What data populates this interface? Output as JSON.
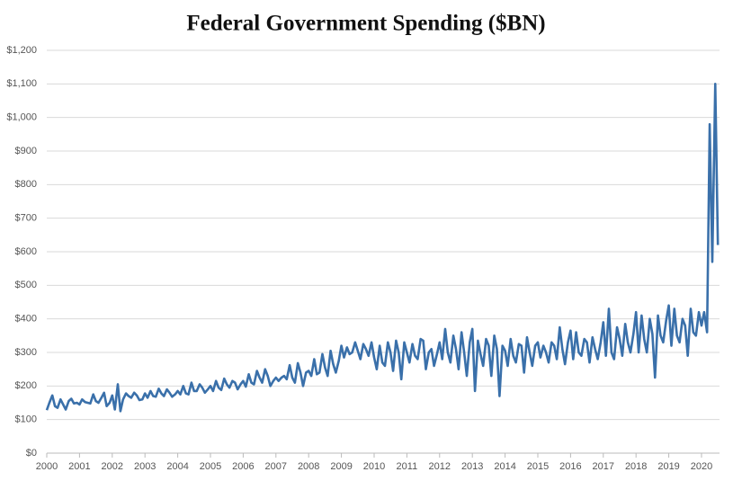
{
  "chart_data": {
    "type": "line",
    "title": "Federal Government Spending ($BN)",
    "xlim": [
      2000,
      2020.55
    ],
    "xticks": [
      2000,
      2001,
      2002,
      2003,
      2004,
      2005,
      2006,
      2007,
      2008,
      2009,
      2010,
      2011,
      2012,
      2013,
      2014,
      2015,
      2016,
      2017,
      2018,
      2019,
      2020
    ],
    "ylim": [
      0,
      1200
    ],
    "yticks": [
      {
        "value": 0,
        "label": "$0"
      },
      {
        "value": 100,
        "label": "$100"
      },
      {
        "value": 200,
        "label": "$200"
      },
      {
        "value": 300,
        "label": "$300"
      },
      {
        "value": 400,
        "label": "$400"
      },
      {
        "value": 500,
        "label": "$500"
      },
      {
        "value": 600,
        "label": "$600"
      },
      {
        "value": 700,
        "label": "$700"
      },
      {
        "value": 800,
        "label": "$800"
      },
      {
        "value": 900,
        "label": "$900"
      },
      {
        "value": 1000,
        "label": "$1,000"
      },
      {
        "value": 1100,
        "label": "$1,100"
      },
      {
        "value": 1200,
        "label": "$1,200"
      }
    ],
    "grid": true,
    "x": [
      2000.0,
      2000.08,
      2000.17,
      2000.25,
      2000.33,
      2000.42,
      2000.5,
      2000.58,
      2000.67,
      2000.75,
      2000.83,
      2000.92,
      2001.0,
      2001.08,
      2001.17,
      2001.25,
      2001.33,
      2001.42,
      2001.5,
      2001.58,
      2001.67,
      2001.75,
      2001.83,
      2001.92,
      2002.0,
      2002.08,
      2002.17,
      2002.25,
      2002.33,
      2002.42,
      2002.5,
      2002.58,
      2002.67,
      2002.75,
      2002.83,
      2002.92,
      2003.0,
      2003.08,
      2003.17,
      2003.25,
      2003.33,
      2003.42,
      2003.5,
      2003.58,
      2003.67,
      2003.75,
      2003.83,
      2003.92,
      2004.0,
      2004.08,
      2004.17,
      2004.25,
      2004.33,
      2004.42,
      2004.5,
      2004.58,
      2004.67,
      2004.75,
      2004.83,
      2004.92,
      2005.0,
      2005.08,
      2005.17,
      2005.25,
      2005.33,
      2005.42,
      2005.5,
      2005.58,
      2005.67,
      2005.75,
      2005.83,
      2005.92,
      2006.0,
      2006.08,
      2006.17,
      2006.25,
      2006.33,
      2006.42,
      2006.5,
      2006.58,
      2006.67,
      2006.75,
      2006.83,
      2006.92,
      2007.0,
      2007.08,
      2007.17,
      2007.25,
      2007.33,
      2007.42,
      2007.5,
      2007.58,
      2007.67,
      2007.75,
      2007.83,
      2007.92,
      2008.0,
      2008.08,
      2008.17,
      2008.25,
      2008.33,
      2008.42,
      2008.5,
      2008.58,
      2008.67,
      2008.75,
      2008.83,
      2008.92,
      2009.0,
      2009.08,
      2009.17,
      2009.25,
      2009.33,
      2009.42,
      2009.5,
      2009.58,
      2009.67,
      2009.75,
      2009.83,
      2009.92,
      2010.0,
      2010.08,
      2010.17,
      2010.25,
      2010.33,
      2010.42,
      2010.5,
      2010.58,
      2010.67,
      2010.75,
      2010.83,
      2010.92,
      2011.0,
      2011.08,
      2011.17,
      2011.25,
      2011.33,
      2011.42,
      2011.5,
      2011.58,
      2011.67,
      2011.75,
      2011.83,
      2011.92,
      2012.0,
      2012.08,
      2012.17,
      2012.25,
      2012.33,
      2012.42,
      2012.5,
      2012.58,
      2012.67,
      2012.75,
      2012.83,
      2012.92,
      2013.0,
      2013.08,
      2013.17,
      2013.25,
      2013.33,
      2013.42,
      2013.5,
      2013.58,
      2013.67,
      2013.75,
      2013.83,
      2013.92,
      2014.0,
      2014.08,
      2014.17,
      2014.25,
      2014.33,
      2014.42,
      2014.5,
      2014.58,
      2014.67,
      2014.75,
      2014.83,
      2014.92,
      2015.0,
      2015.08,
      2015.17,
      2015.25,
      2015.33,
      2015.42,
      2015.5,
      2015.58,
      2015.67,
      2015.75,
      2015.83,
      2015.92,
      2016.0,
      2016.08,
      2016.17,
      2016.25,
      2016.33,
      2016.42,
      2016.5,
      2016.58,
      2016.67,
      2016.75,
      2016.83,
      2016.92,
      2017.0,
      2017.08,
      2017.17,
      2017.25,
      2017.33,
      2017.42,
      2017.5,
      2017.58,
      2017.67,
      2017.75,
      2017.83,
      2017.92,
      2018.0,
      2018.08,
      2018.17,
      2018.25,
      2018.33,
      2018.42,
      2018.5,
      2018.58,
      2018.67,
      2018.75,
      2018.83,
      2018.92,
      2019.0,
      2019.08,
      2019.17,
      2019.25,
      2019.33,
      2019.42,
      2019.5,
      2019.58,
      2019.67,
      2019.75,
      2019.83,
      2019.92,
      2020.0,
      2020.08,
      2020.17,
      2020.25,
      2020.33,
      2020.42,
      2020.5
    ],
    "color": "#3a70aa",
    "values": [
      128,
      150,
      172,
      140,
      135,
      160,
      145,
      130,
      155,
      162,
      148,
      150,
      145,
      160,
      152,
      150,
      148,
      175,
      155,
      150,
      165,
      180,
      140,
      150,
      172,
      130,
      205,
      125,
      160,
      178,
      170,
      165,
      180,
      172,
      158,
      160,
      178,
      165,
      185,
      170,
      168,
      192,
      178,
      170,
      190,
      180,
      168,
      175,
      185,
      175,
      200,
      178,
      175,
      210,
      185,
      185,
      205,
      195,
      180,
      190,
      200,
      185,
      215,
      195,
      188,
      222,
      205,
      195,
      215,
      210,
      190,
      205,
      215,
      198,
      235,
      210,
      205,
      245,
      225,
      210,
      250,
      230,
      200,
      215,
      225,
      215,
      225,
      230,
      220,
      262,
      225,
      210,
      268,
      240,
      200,
      240,
      245,
      230,
      280,
      235,
      240,
      295,
      255,
      230,
      305,
      265,
      240,
      275,
      320,
      285,
      315,
      295,
      300,
      330,
      305,
      280,
      325,
      310,
      290,
      330,
      285,
      250,
      320,
      270,
      260,
      330,
      300,
      245,
      335,
      300,
      220,
      330,
      300,
      270,
      325,
      290,
      280,
      340,
      335,
      250,
      300,
      310,
      260,
      295,
      330,
      280,
      370,
      300,
      270,
      350,
      310,
      250,
      360,
      300,
      230,
      330,
      370,
      185,
      335,
      295,
      260,
      340,
      320,
      230,
      350,
      310,
      170,
      320,
      305,
      260,
      340,
      290,
      270,
      325,
      320,
      240,
      345,
      300,
      260,
      320,
      330,
      285,
      320,
      300,
      270,
      330,
      320,
      280,
      375,
      310,
      265,
      330,
      365,
      280,
      360,
      300,
      290,
      340,
      330,
      270,
      345,
      310,
      280,
      330,
      390,
      290,
      430,
      300,
      280,
      375,
      340,
      290,
      385,
      330,
      300,
      355,
      420,
      300,
      410,
      340,
      300,
      400,
      355,
      225,
      410,
      350,
      330,
      395,
      440,
      320,
      430,
      350,
      330,
      400,
      380,
      290,
      430,
      360,
      350,
      420,
      380,
      420,
      360,
      980,
      570,
      1100,
      620
    ]
  }
}
